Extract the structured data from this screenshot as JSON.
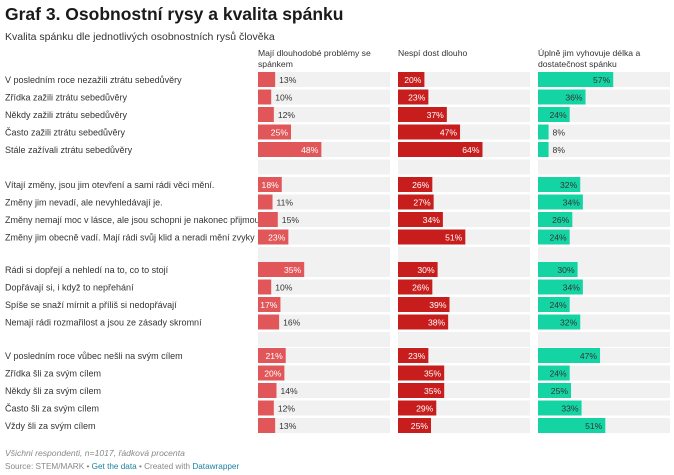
{
  "title": "Graf 3. Osobnostní rysy a kvalita spánku",
  "subtitle": "Kvalita spánku dle jednotlivých osobnostních rysů člověka",
  "note": "Všichni respondenti, n=1017, řádková procenta",
  "footer": {
    "source": "Source: STEM/MARK",
    "sep1": " • ",
    "get_data": "Get the data",
    "sep2": " • Created with ",
    "datawrapper": "Datawrapper"
  },
  "chart_data": {
    "type": "bar",
    "columns": [
      {
        "name": "Mají dlouhodobé problémy se spánkem",
        "color": "#e15759"
      },
      {
        "name": "Nespí dost dlouho",
        "color": "#c71e1d"
      },
      {
        "name": "Úplně jim vyhovuje délka a dostatečnost spánku",
        "color": "#15d4a4"
      }
    ],
    "groups": [
      {
        "rows": [
          {
            "label": "V posledním roce nezažili ztrátu sebedůvěry",
            "values": [
              13,
              20,
              57
            ]
          },
          {
            "label": "Zřídka zažili ztrátu sebedůvěry",
            "values": [
              10,
              23,
              36
            ]
          },
          {
            "label": "Někdy zažili ztrátu sebedůvěry",
            "values": [
              12,
              37,
              24
            ]
          },
          {
            "label": "Často zažili ztrátu sebedůvěry",
            "values": [
              25,
              47,
              8
            ]
          },
          {
            "label": "Stále zažívali ztrátu sebedůvěry",
            "values": [
              48,
              64,
              8
            ]
          }
        ]
      },
      {
        "rows": [
          {
            "label": "Vítají změny, jsou jim otevření a sami rádi věci mění.",
            "values": [
              18,
              26,
              32
            ]
          },
          {
            "label": "Změny jim nevadí, ale nevyhledávají je.",
            "values": [
              11,
              27,
              34
            ]
          },
          {
            "label": "Změny nemají moc v lásce, ale jsou schopni je nakonec přijmout",
            "values": [
              15,
              34,
              26
            ]
          },
          {
            "label": "Změny jim obecně vadí. Mají rádi svůj klid a neradi mění zvyky",
            "values": [
              23,
              51,
              24
            ]
          }
        ]
      },
      {
        "rows": [
          {
            "label": "Rádi si dopřejí a nehledí na to, co to stojí",
            "values": [
              35,
              30,
              30
            ]
          },
          {
            "label": "Dopřávají si, i když to nepřehání",
            "values": [
              10,
              26,
              34
            ]
          },
          {
            "label": "Spíše se snaží mírnit a příliš si nedopřávají",
            "values": [
              17,
              39,
              24
            ]
          },
          {
            "label": "Nemají rádi rozmařilost a jsou ze zásady skromní",
            "values": [
              16,
              38,
              32
            ]
          }
        ]
      },
      {
        "rows": [
          {
            "label": "V posledním roce vůbec nešli na svým cílem",
            "values": [
              21,
              23,
              47
            ]
          },
          {
            "label": "Zřídka šli za svým cílem",
            "values": [
              20,
              35,
              24
            ]
          },
          {
            "label": "Někdy šli za svým cílem",
            "values": [
              14,
              35,
              25
            ]
          },
          {
            "label": "Často šli za svým cílem",
            "values": [
              12,
              29,
              33
            ]
          },
          {
            "label": "Vždy šli za svým cílem",
            "values": [
              13,
              25,
              51
            ]
          }
        ]
      }
    ],
    "value_suffix": "%",
    "xlim": [
      0,
      100
    ]
  }
}
